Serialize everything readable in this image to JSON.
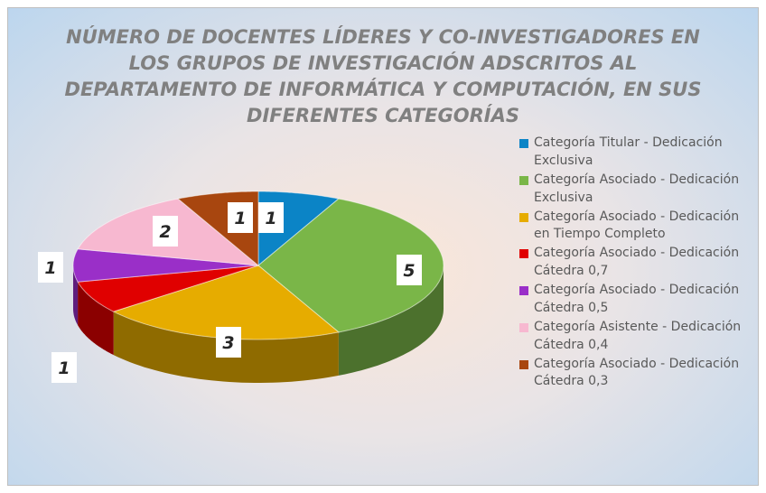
{
  "chart_data": {
    "type": "pie",
    "title": "NÚMERO DE DOCENTES LÍDERES Y CO-INVESTIGADORES EN LOS GRUPOS DE INVESTIGACIÓN ADSCRITOS AL DEPARTAMENTO DE INFORMÁTICA Y COMPUTACIÓN, EN SUS DIFERENTES CATEGORÍAS",
    "categories": [
      "Categoría Titular - Dedicación Exclusiva",
      "Categoría Asociado - Dedicación Exclusiva",
      "Categoría Asociado - Dedicación en Tiempo Completo",
      "Categoría Asociado - Dedicación Cátedra 0,7",
      "Categoría Asociado - Dedicación Cátedra 0,5",
      "Categoría Asistente - Dedicación Cátedra 0,4",
      "Categoría Asociado - Dedicación Cátedra 0,3"
    ],
    "values": [
      1,
      5,
      3,
      1,
      1,
      2,
      1
    ],
    "colors": [
      "#0b84c6",
      "#7ab648",
      "#e6ac00",
      "#e00000",
      "#9a2fc8",
      "#f7b8d0",
      "#a8460f"
    ],
    "legend": "right"
  }
}
